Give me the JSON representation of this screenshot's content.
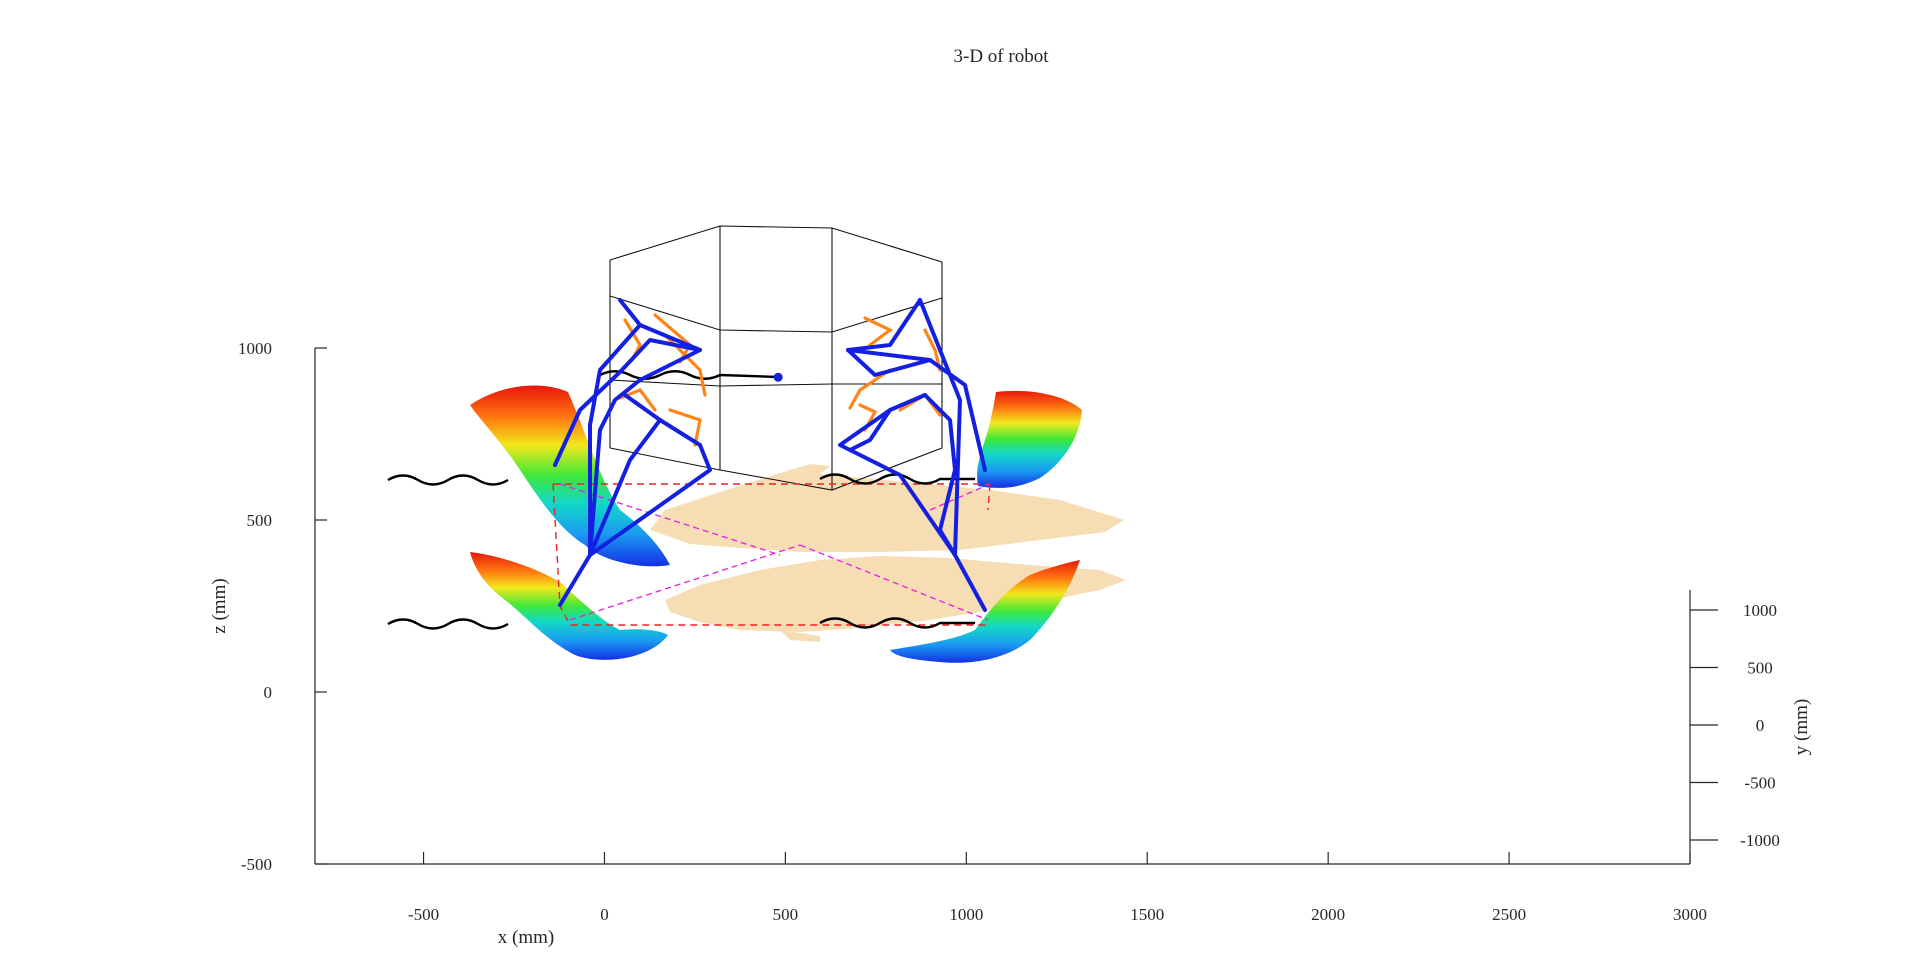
{
  "chart_data": {
    "type": "scatter",
    "title": "3-D of robot",
    "xlabel": "x (mm)",
    "ylabel": "y (mm)",
    "zlabel": "z (mm)",
    "xlim": [
      -800,
      3000
    ],
    "zlim": [
      -500,
      1000
    ],
    "ylim": [
      -1300,
      1300
    ],
    "x_ticks": [
      -500,
      0,
      500,
      1000,
      1500,
      2000,
      2500,
      3000
    ],
    "z_ticks": [
      -500,
      0,
      500,
      1000
    ],
    "y_ticks": [
      1000,
      500,
      0,
      -500,
      -1000
    ],
    "grid": false,
    "legend": "none",
    "colors": {
      "frame": "#000000",
      "legs": "#1420e0",
      "joints": "#ff8418",
      "support_polygon": "#ee2222",
      "cog_projection": "#e020e0",
      "terrain": "#f7ddb4",
      "trajectory": "#000000",
      "workspace_colormap": "jet"
    },
    "body_center": {
      "x": 480,
      "z": 915
    }
  }
}
